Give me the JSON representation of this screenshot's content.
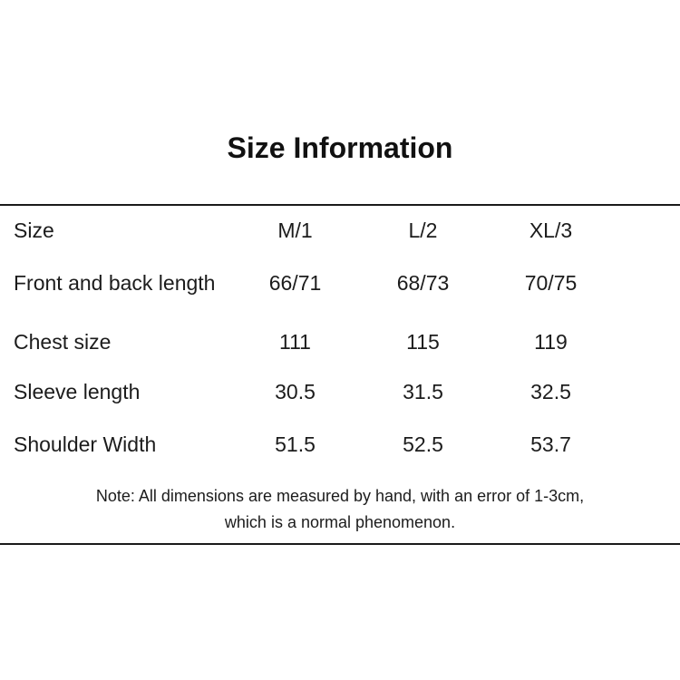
{
  "colors": {
    "background": "#ffffff",
    "text": "#1c1c1c",
    "rule": "#1a1a1a"
  },
  "title": "Size Information",
  "table": {
    "header": {
      "label": "Size",
      "values": [
        "M/1",
        "L/2",
        "XL/3"
      ]
    },
    "rows": [
      {
        "label": "Front and back length",
        "values": [
          "66/71",
          "68/73",
          "70/75"
        ]
      },
      {
        "label": "Chest size",
        "values": [
          "111",
          "115",
          "119"
        ]
      },
      {
        "label": "Sleeve length",
        "values": [
          "30.5",
          "31.5",
          "32.5"
        ]
      },
      {
        "label": "Shoulder Width",
        "values": [
          "51.5",
          "52.5",
          "53.7"
        ]
      }
    ]
  },
  "note": {
    "line1": "Note: All dimensions are measured by hand, with an error of 1-3cm,",
    "line2": "which is a normal phenomenon."
  }
}
